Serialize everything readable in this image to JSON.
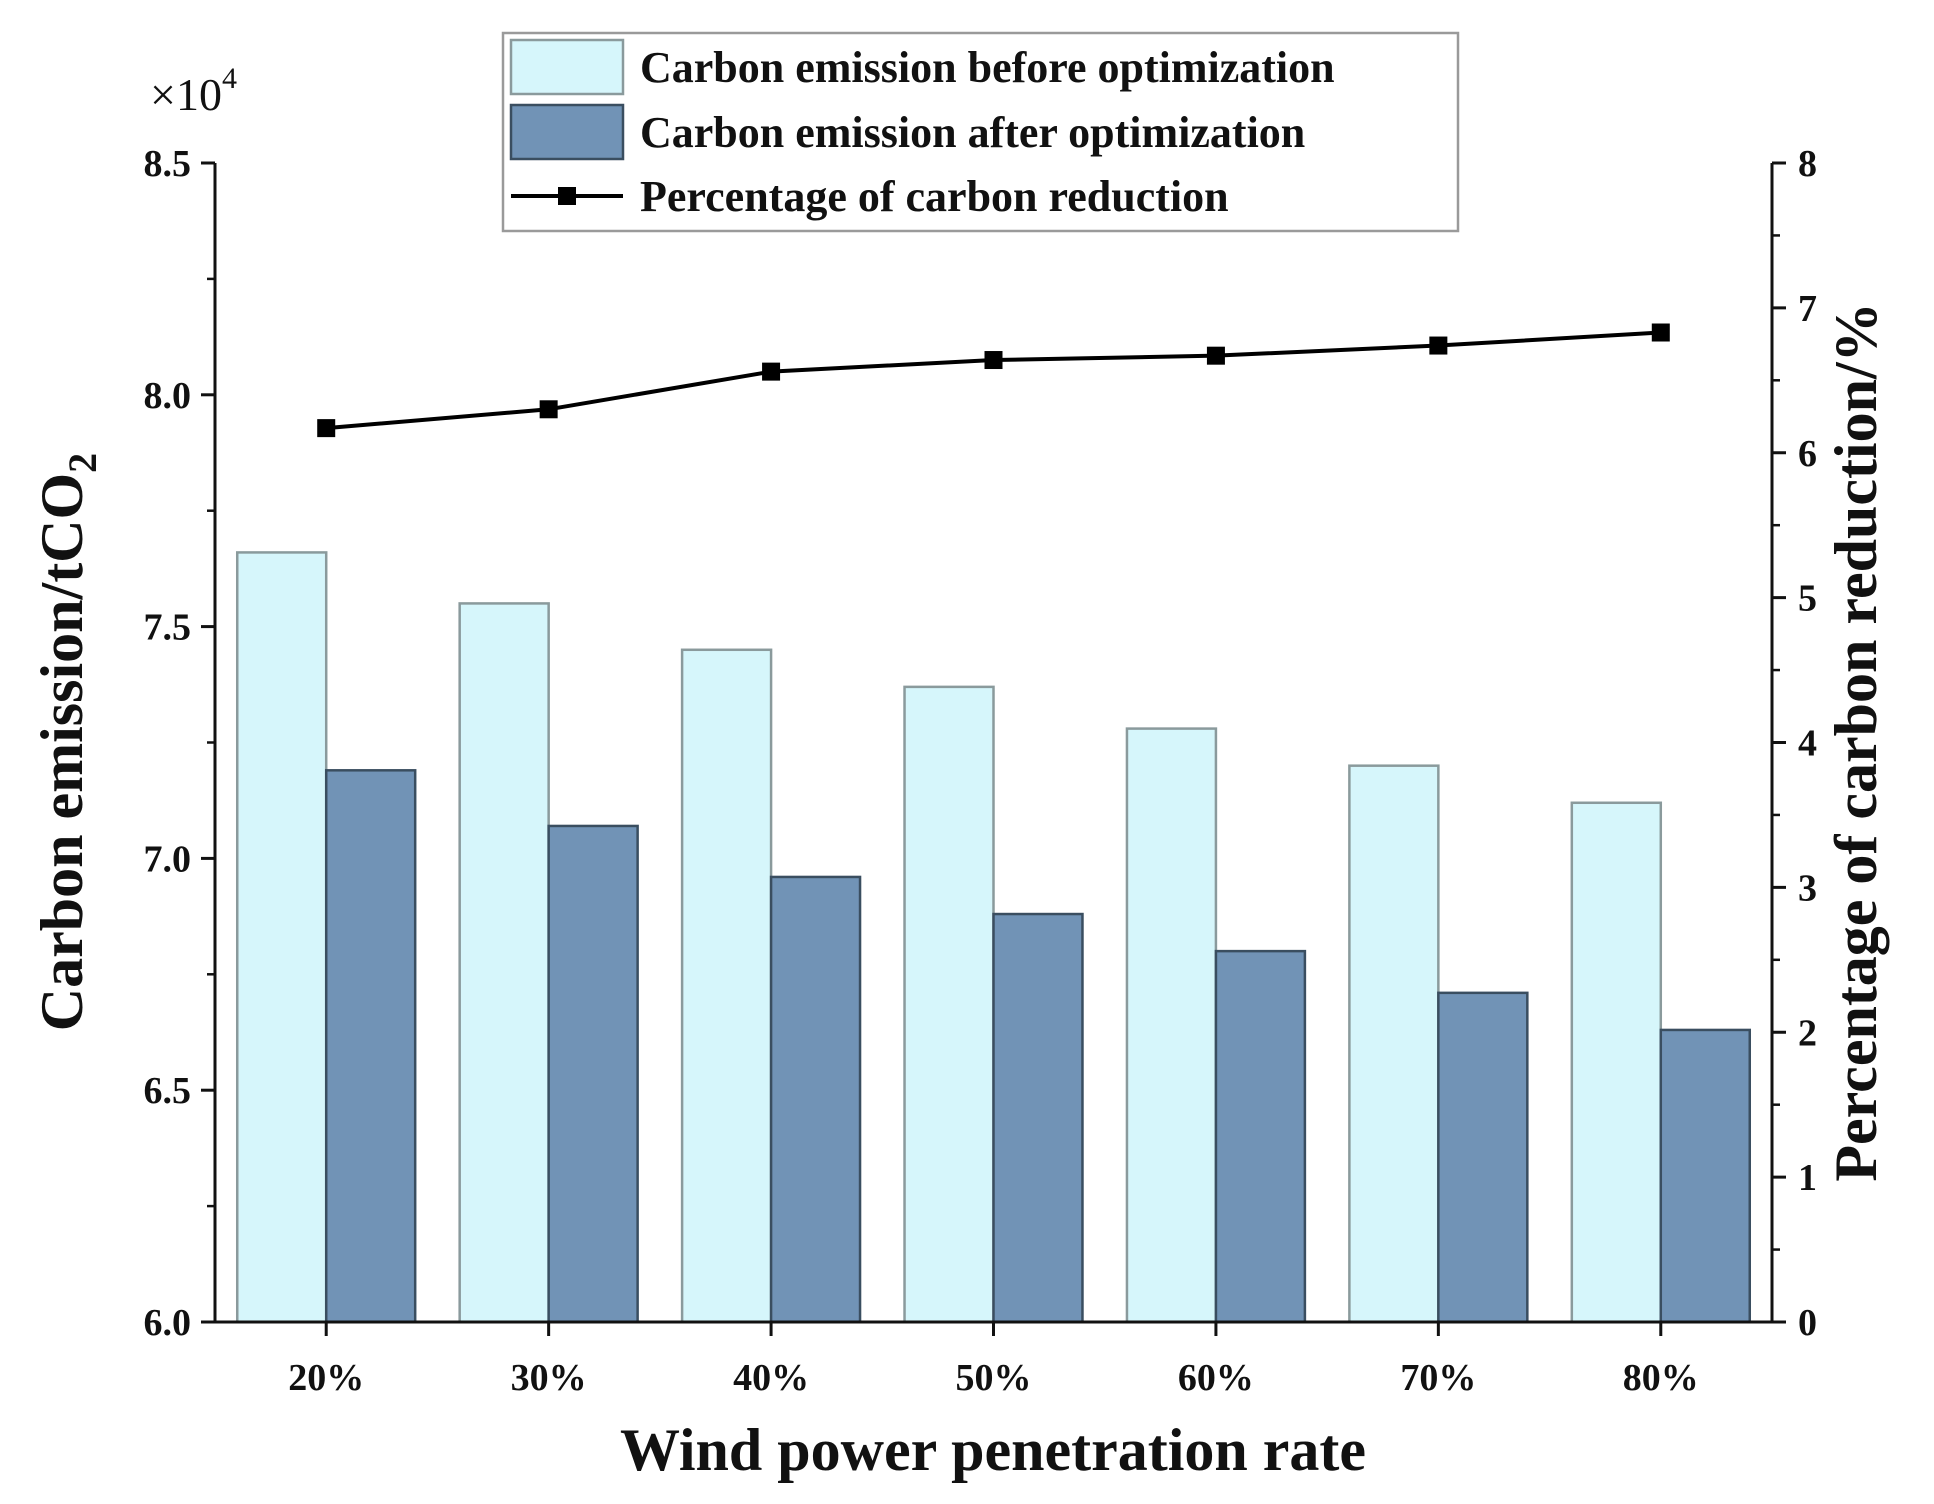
{
  "chart_data": {
    "type": "bar",
    "categories": [
      "20%",
      "30%",
      "40%",
      "50%",
      "60%",
      "70%",
      "80%"
    ],
    "series": [
      {
        "name": "Carbon emission before optimization",
        "axis": "left",
        "kind": "bar",
        "values": [
          7.66,
          7.55,
          7.45,
          7.37,
          7.28,
          7.2,
          7.12
        ],
        "color": "#d6f6fb",
        "edge": "#8a9a9c"
      },
      {
        "name": "Carbon emission after optimization",
        "axis": "left",
        "kind": "bar",
        "values": [
          7.19,
          7.07,
          6.96,
          6.88,
          6.8,
          6.71,
          6.63
        ],
        "color": "#7193b6",
        "edge": "#3a4e60"
      },
      {
        "name": "Percentage of carbon reduction",
        "axis": "right",
        "kind": "line",
        "values": [
          6.17,
          6.3,
          6.56,
          6.64,
          6.67,
          6.74,
          6.83
        ],
        "color": "#000000"
      }
    ],
    "xlabel": "Wind power penetration rate",
    "ylabel_main": "Carbon emission/tCO",
    "ylabel_sub": "2",
    "y2label": "Percentage of carbon reduction/%",
    "multiplier_base": "×10",
    "multiplier_exp": "4",
    "ylim": [
      6.0,
      8.5
    ],
    "yticks": [
      "6.0",
      "6.5",
      "7.0",
      "7.5",
      "8.0",
      "8.5"
    ],
    "y2lim": [
      0,
      8
    ],
    "y2ticks": [
      "0",
      "1",
      "2",
      "3",
      "4",
      "5",
      "6",
      "7",
      "8"
    ],
    "legend_position": "top-center"
  }
}
